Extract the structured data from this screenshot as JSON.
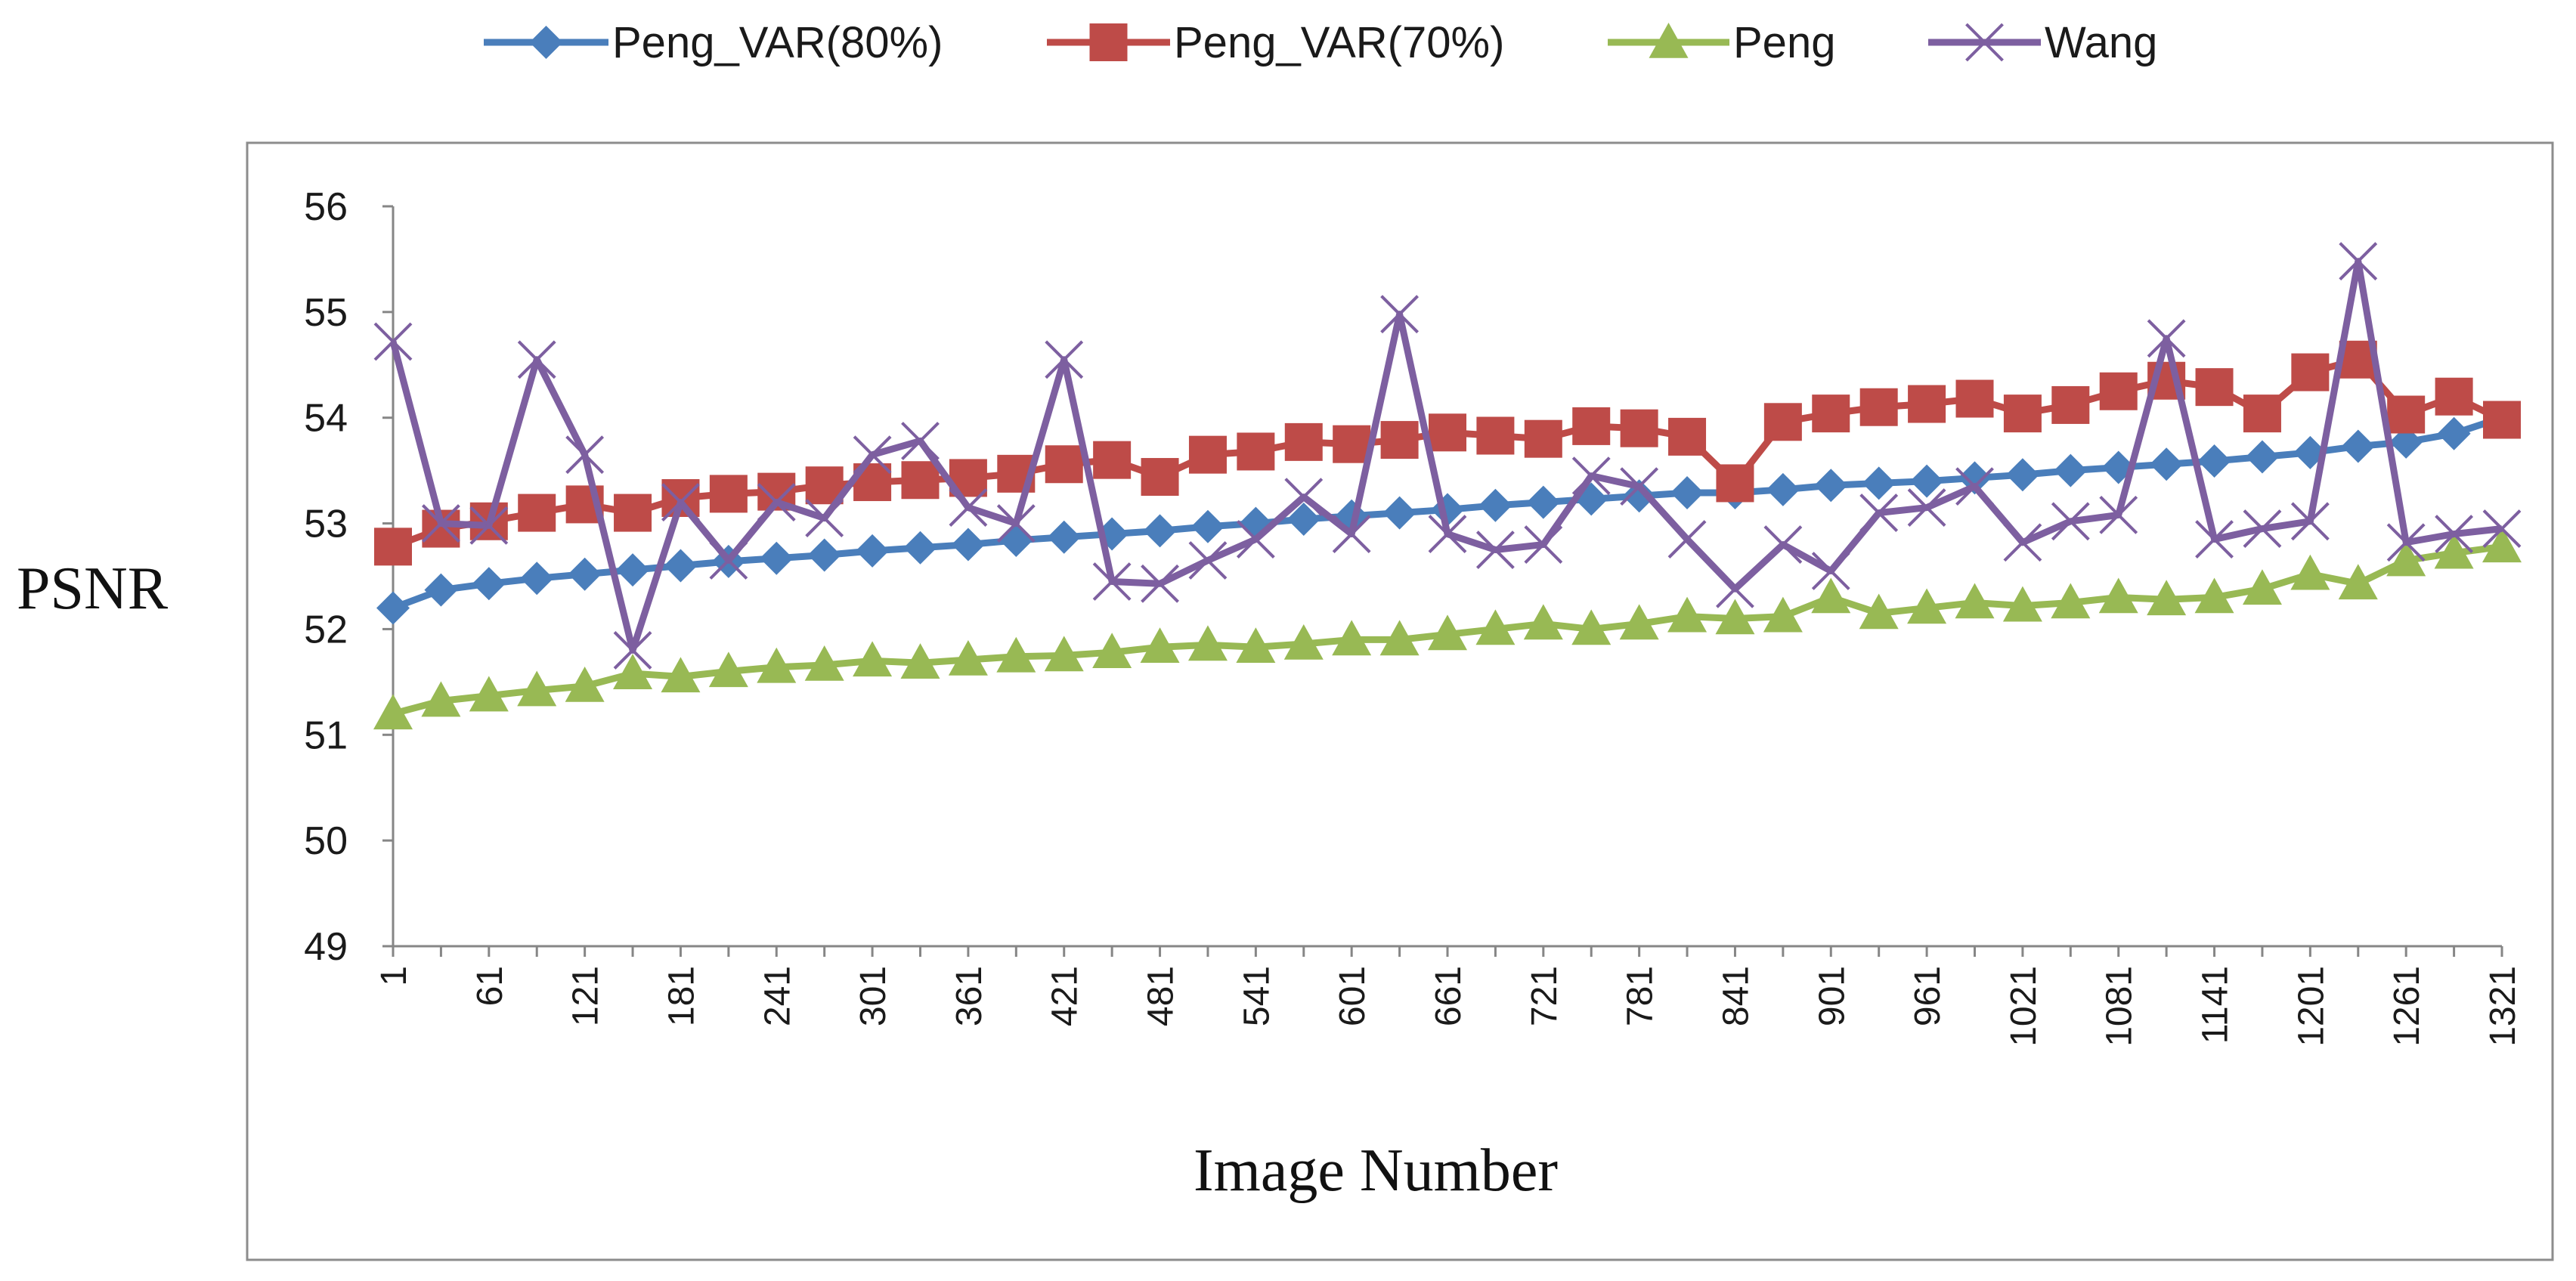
{
  "chart_data": {
    "type": "line",
    "title": "",
    "xlabel": "Image Number",
    "ylabel": "PSNR",
    "ylim": [
      49,
      56
    ],
    "yticks": [
      "49",
      "50",
      "51",
      "52",
      "53",
      "54",
      "55",
      "56"
    ],
    "x": [
      1,
      31,
      61,
      91,
      121,
      151,
      181,
      211,
      241,
      271,
      301,
      331,
      361,
      391,
      421,
      451,
      481,
      511,
      541,
      571,
      601,
      631,
      661,
      691,
      721,
      751,
      781,
      811,
      841,
      871,
      901,
      931,
      961,
      991,
      1021,
      1051,
      1081,
      1111,
      1141,
      1171,
      1201,
      1231,
      1261,
      1291,
      1321
    ],
    "xtick_labels": [
      "1",
      "61",
      "121",
      "181",
      "241",
      "301",
      "361",
      "421",
      "481",
      "541",
      "601",
      "661",
      "721",
      "781",
      "841",
      "901",
      "961",
      "1021",
      "1081",
      "1141",
      "1201",
      "1261",
      "1321"
    ],
    "legend_position": "top",
    "grid": false,
    "series": [
      {
        "name": "Peng_VAR(80%)",
        "color": "#4A7EBB",
        "marker": "diamond",
        "values": [
          52.2,
          52.37,
          52.43,
          52.48,
          52.52,
          52.56,
          52.6,
          52.64,
          52.67,
          52.7,
          52.74,
          52.77,
          52.8,
          52.84,
          52.87,
          52.9,
          52.93,
          52.97,
          53.0,
          53.04,
          53.07,
          53.1,
          53.13,
          53.17,
          53.2,
          53.23,
          53.26,
          53.29,
          53.29,
          53.32,
          53.36,
          53.38,
          53.4,
          53.43,
          53.46,
          53.5,
          53.53,
          53.56,
          53.59,
          53.63,
          53.67,
          53.73,
          53.77,
          53.85,
          54.0
        ]
      },
      {
        "name": "Peng_VAR(70%)",
        "color": "#BE4B48",
        "marker": "square",
        "values": [
          52.78,
          52.95,
          53.02,
          53.1,
          53.18,
          53.1,
          53.24,
          53.28,
          53.3,
          53.36,
          53.39,
          53.41,
          53.43,
          53.47,
          53.56,
          53.6,
          53.44,
          53.65,
          53.68,
          53.77,
          53.75,
          53.79,
          53.86,
          53.83,
          53.8,
          53.92,
          53.9,
          53.82,
          53.38,
          53.96,
          54.04,
          54.1,
          54.13,
          54.18,
          54.04,
          54.12,
          54.25,
          54.35,
          54.29,
          54.04,
          54.43,
          54.55,
          54.03,
          54.2,
          53.98
        ]
      },
      {
        "name": "Peng",
        "color": "#98B954",
        "marker": "triangle",
        "values": [
          51.2,
          51.32,
          51.37,
          51.42,
          51.46,
          51.58,
          51.55,
          51.6,
          51.64,
          51.66,
          51.7,
          51.68,
          51.71,
          51.74,
          51.75,
          51.78,
          51.83,
          51.85,
          51.83,
          51.86,
          51.9,
          51.9,
          51.95,
          52.0,
          52.05,
          52.0,
          52.05,
          52.12,
          52.1,
          52.12,
          52.3,
          52.15,
          52.2,
          52.25,
          52.22,
          52.25,
          52.3,
          52.28,
          52.3,
          52.38,
          52.52,
          52.43,
          52.65,
          52.72,
          52.78
        ]
      },
      {
        "name": "Wang",
        "color": "#7D5FA0",
        "marker": "x",
        "values": [
          54.72,
          53.0,
          52.98,
          54.55,
          53.65,
          51.8,
          53.2,
          52.65,
          53.2,
          53.05,
          53.65,
          53.78,
          53.15,
          53.0,
          54.55,
          52.45,
          52.43,
          52.65,
          52.85,
          53.25,
          52.9,
          54.98,
          52.9,
          52.75,
          52.8,
          53.45,
          53.35,
          52.85,
          52.38,
          52.8,
          52.55,
          53.1,
          53.15,
          53.35,
          52.82,
          53.02,
          53.08,
          54.75,
          52.85,
          52.95,
          53.02,
          55.48,
          52.82,
          52.9,
          52.95
        ]
      }
    ]
  }
}
